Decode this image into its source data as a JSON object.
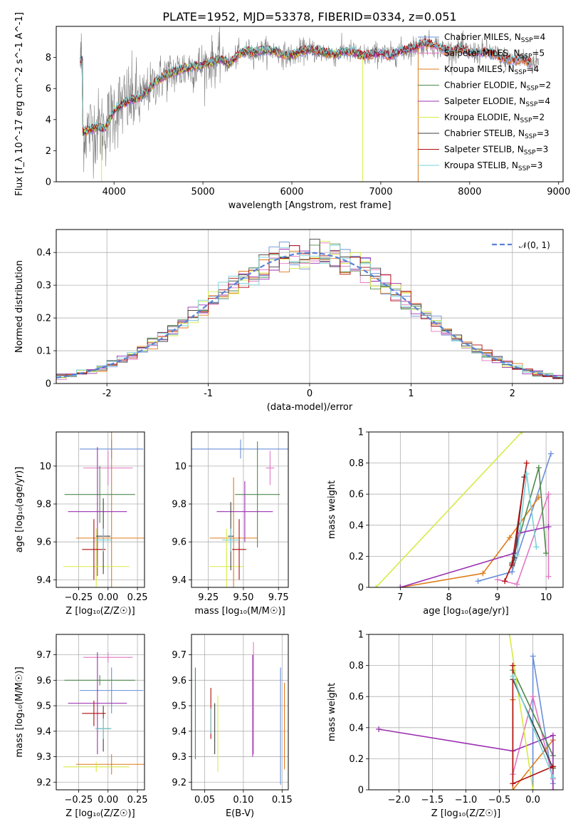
{
  "title": "PLATE=1952, MJD=53378, FIBERID=0334, z=0.051",
  "colors": {
    "Chabrier MILES": "#6a8fd8",
    "Salpeter MILES": "#e377c2",
    "Kroupa MILES": "#e07b1a",
    "Chabrier ELODIE": "#4f8a4f",
    "Salpeter ELODIE": "#9b30b0",
    "Kroupa ELODIE": "#d7ea45",
    "Chabrier STELIB": "#404040",
    "Salpeter STELIB": "#b00d0d",
    "Kroupa STELIB": "#77d3d8",
    "data": "#808080",
    "normal": "#5b82d6"
  },
  "chart_data": [
    {
      "id": "spectrum",
      "type": "line",
      "xlabel": "wavelength [Angstrom, rest frame]",
      "ylabel": "Flux [f_λ 10^-17 erg cm^-2 s^-1 A^-1]",
      "xlim": [
        3350,
        9050
      ],
      "ylim": [
        0,
        10
      ],
      "xticks": [
        4000,
        5000,
        6000,
        7000,
        8000,
        9000
      ],
      "yticks": [
        0,
        2,
        4,
        6,
        8
      ],
      "grid": false,
      "legend": "right",
      "legend_entries": [
        {
          "name": "Chabrier MILES",
          "label": "Chabrier MILES, N",
          "sub": "SSP",
          "suffix": "=4"
        },
        {
          "name": "Salpeter MILES",
          "label": "Salpeter MILES, N",
          "sub": "SSP",
          "suffix": "=5"
        },
        {
          "name": "Kroupa MILES",
          "label": "Kroupa MILES, N",
          "sub": "SSP",
          "suffix": "=4"
        },
        {
          "name": "Chabrier ELODIE",
          "label": "Chabrier ELODIE, N",
          "sub": "SSP",
          "suffix": "=2"
        },
        {
          "name": "Salpeter ELODIE",
          "label": "Salpeter ELODIE, N",
          "sub": "SSP",
          "suffix": "=4"
        },
        {
          "name": "Kroupa ELODIE",
          "label": "Kroupa ELODIE, N",
          "sub": "SSP",
          "suffix": "=2"
        },
        {
          "name": "Chabrier STELIB",
          "label": "Chabrier STELIB, N",
          "sub": "SSP",
          "suffix": "=3"
        },
        {
          "name": "Salpeter STELIB",
          "label": "Salpeter STELIB, N",
          "sub": "SSP",
          "suffix": "=3"
        },
        {
          "name": "Kroupa STELIB",
          "label": "Kroupa STELIB, N",
          "sub": "SSP",
          "suffix": "=3"
        }
      ],
      "continuum": [
        [
          3650,
          3.2
        ],
        [
          3800,
          3.5
        ],
        [
          3900,
          3.4
        ],
        [
          4000,
          4.6
        ],
        [
          4100,
          5.0
        ],
        [
          4200,
          5.3
        ],
        [
          4300,
          5.4
        ],
        [
          4400,
          6.0
        ],
        [
          4500,
          6.6
        ],
        [
          4600,
          6.9
        ],
        [
          4700,
          7.1
        ],
        [
          4800,
          7.3
        ],
        [
          4900,
          7.4
        ],
        [
          5000,
          7.5
        ],
        [
          5100,
          7.7
        ],
        [
          5200,
          7.9
        ],
        [
          5300,
          7.6
        ],
        [
          5400,
          8.2
        ],
        [
          5500,
          8.4
        ],
        [
          5600,
          8.3
        ],
        [
          5700,
          8.5
        ],
        [
          5800,
          8.4
        ],
        [
          5900,
          8.2
        ],
        [
          6000,
          8.1
        ],
        [
          6100,
          8.4
        ],
        [
          6200,
          8.5
        ],
        [
          6300,
          8.4
        ],
        [
          6400,
          8.3
        ],
        [
          6500,
          8.2
        ],
        [
          6600,
          8.4
        ],
        [
          6700,
          8.3
        ],
        [
          6800,
          8.1
        ],
        [
          6900,
          8.2
        ],
        [
          7000,
          8.3
        ],
        [
          7100,
          8.1
        ],
        [
          7200,
          8.4
        ],
        [
          7300,
          8.5
        ],
        [
          7400,
          8.7
        ],
        [
          7500,
          8.9
        ],
        [
          7600,
          8.8
        ],
        [
          7700,
          8.5
        ],
        [
          7800,
          8.4
        ],
        [
          7900,
          8.6
        ],
        [
          8000,
          8.3
        ],
        [
          8100,
          8.3
        ],
        [
          8200,
          8.4
        ],
        [
          8300,
          8.1
        ],
        [
          8400,
          7.9
        ],
        [
          8500,
          7.8
        ],
        [
          8600,
          7.9
        ],
        [
          8700,
          7.6
        ],
        [
          8780,
          7.8
        ]
      ],
      "data_range": [
        3620,
        8780
      ],
      "model_range": [
        3620,
        7420
      ]
    },
    {
      "id": "residuals",
      "type": "histogram",
      "xlabel": "(data-model)/error",
      "ylabel": "Normed distribution",
      "xlim": [
        -2.5,
        2.5
      ],
      "ylim": [
        0,
        0.47
      ],
      "xticks": [
        -2,
        -1,
        0,
        1,
        2
      ],
      "yticks": [
        0.0,
        0.1,
        0.2,
        0.3,
        0.4
      ],
      "grid": true,
      "legend": "top-right",
      "normal_label": "𝒩(0, 1)",
      "bin_width": 0.1
    },
    {
      "id": "age-vs-Z",
      "type": "errorbar",
      "xlabel": "Z [log₁₀(Z/Z☉)]",
      "ylabel": "age  [log₁₀(age/yr)]",
      "xlim": [
        -0.44,
        0.31
      ],
      "ylim": [
        9.36,
        10.18
      ],
      "xticks": [
        -0.25,
        0.0,
        0.25
      ],
      "xticklabels": [
        "−0.25",
        "0.00",
        "0.25"
      ],
      "yticks": [
        9.4,
        9.6,
        9.8,
        10.0
      ],
      "grid": true,
      "points": [
        {
          "series": "Chabrier MILES",
          "x": 0.03,
          "xerr": 0.27,
          "y": 10.09,
          "yerr": 0.05
        },
        {
          "series": "Salpeter MILES",
          "x": 0.0,
          "xerr": 0.21,
          "y": 9.99,
          "yerr": 0.09
        },
        {
          "series": "Kroupa MILES",
          "x": 0.03,
          "xerr": 0.3,
          "y": 9.62,
          "yerr": 0.57
        },
        {
          "series": "Chabrier ELODIE",
          "x": -0.07,
          "xerr": 0.3,
          "y": 9.85,
          "yerr": 0.15
        },
        {
          "series": "Salpeter ELODIE",
          "x": -0.09,
          "xerr": 0.25,
          "y": 9.76,
          "yerr": 0.34
        },
        {
          "series": "Kroupa ELODIE",
          "x": -0.1,
          "xerr": 0.28,
          "y": 9.47,
          "yerr": 0.2
        },
        {
          "series": "Chabrier STELIB",
          "x": -0.04,
          "xerr": 0.06,
          "y": 9.63,
          "yerr": 0.2
        },
        {
          "series": "Salpeter STELIB",
          "x": -0.12,
          "xerr": 0.1,
          "y": 9.56,
          "yerr": 0.16
        },
        {
          "series": "Kroupa STELIB",
          "x": -0.04,
          "xerr": 0.07,
          "y": 9.61,
          "yerr": 0.06
        }
      ]
    },
    {
      "id": "age-vs-mass",
      "type": "errorbar",
      "xlabel": "mass [log₁₀(M/M☉)]",
      "ylabel": "",
      "xlim": [
        9.13,
        9.82
      ],
      "ylim": [
        9.36,
        10.18
      ],
      "xticks": [
        9.25,
        9.5,
        9.75
      ],
      "xticklabels": [
        "9.25",
        "9.50",
        "9.75"
      ],
      "yticks": [
        9.4,
        9.6,
        9.8,
        10.0
      ],
      "grid": true,
      "points": [
        {
          "series": "Chabrier MILES",
          "x": 9.48,
          "xerr": 0.4,
          "y": 10.09,
          "yerr": 0.05
        },
        {
          "series": "Salpeter MILES",
          "x": 9.69,
          "xerr": 0.03,
          "y": 9.99,
          "yerr": 0.09
        },
        {
          "series": "Kroupa MILES",
          "x": 9.43,
          "xerr": 0.17,
          "y": 9.62,
          "yerr": 0.32
        },
        {
          "series": "Chabrier ELODIE",
          "x": 9.6,
          "xerr": 0.16,
          "y": 9.85,
          "yerr": 0.28
        },
        {
          "series": "Salpeter ELODIE",
          "x": 9.51,
          "xerr": 0.2,
          "y": 9.76,
          "yerr": 0.16
        },
        {
          "series": "Kroupa ELODIE",
          "x": 9.38,
          "xerr": 0.12,
          "y": 9.47,
          "yerr": 0.2
        },
        {
          "series": "Chabrier STELIB",
          "x": 9.41,
          "xerr": 0.02,
          "y": 9.63,
          "yerr": 0.18
        },
        {
          "series": "Salpeter STELIB",
          "x": 9.47,
          "xerr": 0.05,
          "y": 9.56,
          "yerr": 0.16
        },
        {
          "series": "Kroupa STELIB",
          "x": 9.41,
          "xerr": 0.06,
          "y": 9.61,
          "yerr": 0.06
        }
      ]
    },
    {
      "id": "weight-vs-age",
      "type": "line",
      "xlabel": "age  [log₁₀(age/yr)]",
      "ylabel": "mass weight",
      "xlim": [
        6.35,
        10.35
      ],
      "ylim": [
        0.0,
        1.0
      ],
      "xticks": [
        7,
        8,
        9,
        10
      ],
      "yticks": [
        0.0,
        0.2,
        0.4,
        0.6,
        0.8,
        1.0
      ],
      "grid": true,
      "series": [
        {
          "name": "Chabrier MILES",
          "x": [
            8.6,
            9.3,
            10.1
          ],
          "y": [
            0.04,
            0.1,
            0.86
          ]
        },
        {
          "name": "Salpeter MILES",
          "x": [
            9.0,
            9.4,
            10.05,
            10.05
          ],
          "y": [
            0.05,
            0.02,
            0.6,
            0.07
          ]
        },
        {
          "name": "Kroupa MILES",
          "x": [
            7.0,
            8.7,
            9.25,
            9.85
          ],
          "y": [
            0.0,
            0.09,
            0.32,
            0.58
          ]
        },
        {
          "name": "Chabrier ELODIE",
          "x": [
            9.3,
            9.85,
            10.0
          ],
          "y": [
            0.16,
            0.77,
            0.22
          ]
        },
        {
          "name": "Salpeter ELODIE",
          "x": [
            7.0,
            9.35,
            9.45,
            10.05
          ],
          "y": [
            0.0,
            0.22,
            0.35,
            0.39
          ]
        },
        {
          "name": "Kroupa ELODIE",
          "x": [
            6.5,
            9.5
          ],
          "y": [
            0.0,
            1.0
          ]
        },
        {
          "name": "Chabrier STELIB",
          "x": [
            9.3,
            9.35,
            9.55
          ],
          "y": [
            0.14,
            0.19,
            0.71
          ]
        },
        {
          "name": "Salpeter STELIB",
          "x": [
            9.15,
            9.3,
            9.6
          ],
          "y": [
            0.04,
            0.15,
            0.8
          ]
        },
        {
          "name": "Kroupa STELIB",
          "x": [
            9.4,
            9.6,
            9.8
          ],
          "y": [
            0.21,
            0.73,
            0.26
          ]
        }
      ]
    },
    {
      "id": "mass-vs-Z",
      "type": "errorbar",
      "xlabel": "Z [log₁₀(Z/Z☉)]",
      "ylabel": "mass [log₁₀(M/M☉)]",
      "xlim": [
        -0.44,
        0.31
      ],
      "ylim": [
        9.17,
        9.78
      ],
      "xticks": [
        -0.25,
        0.0,
        0.25
      ],
      "xticklabels": [
        "−0.25",
        "0.00",
        "0.25"
      ],
      "yticks": [
        9.2,
        9.3,
        9.4,
        9.5,
        9.6,
        9.7
      ],
      "grid": true,
      "points": [
        {
          "series": "Chabrier MILES",
          "x": 0.03,
          "xerr": 0.27,
          "y": 9.56,
          "yerr": 0.09
        },
        {
          "series": "Salpeter MILES",
          "x": 0.0,
          "xerr": 0.21,
          "y": 9.69,
          "yerr": 0.02
        },
        {
          "series": "Kroupa MILES",
          "x": 0.03,
          "xerr": 0.3,
          "y": 9.27,
          "yerr": 0.04
        },
        {
          "series": "Chabrier ELODIE",
          "x": -0.07,
          "xerr": 0.3,
          "y": 9.6,
          "yerr": 0.02
        },
        {
          "series": "Salpeter ELODIE",
          "x": -0.09,
          "xerr": 0.25,
          "y": 9.51,
          "yerr": 0.2
        },
        {
          "series": "Kroupa ELODIE",
          "x": -0.1,
          "xerr": 0.28,
          "y": 9.26,
          "yerr": 0.02
        },
        {
          "series": "Chabrier STELIB",
          "x": -0.04,
          "xerr": 0.06,
          "y": 9.41,
          "yerr": 0.09
        },
        {
          "series": "Salpeter STELIB",
          "x": -0.12,
          "xerr": 0.1,
          "y": 9.47,
          "yerr": 0.05
        },
        {
          "series": "Kroupa STELIB",
          "x": -0.04,
          "xerr": 0.07,
          "y": 9.41,
          "yerr": 0.04
        }
      ]
    },
    {
      "id": "mass-vs-EBV",
      "type": "errorbar",
      "xlabel": "E(B-V)",
      "ylabel": "",
      "xlim": [
        0.033,
        0.158
      ],
      "ylim": [
        9.17,
        9.78
      ],
      "xticks": [
        0.05,
        0.1,
        0.15
      ],
      "xticklabels": [
        "0.05",
        "0.10",
        "0.15"
      ],
      "yticks": [
        9.2,
        9.3,
        9.4,
        9.5,
        9.6,
        9.7
      ],
      "grid": true,
      "points": [
        {
          "series": "Chabrier MILES",
          "x": 0.148,
          "xerr": 0,
          "y": 9.42,
          "yerr": 0.23
        },
        {
          "series": "Salpeter MILES",
          "x": 0.113,
          "xerr": 0,
          "y": 9.53,
          "yerr": 0.22
        },
        {
          "series": "Kroupa MILES",
          "x": 0.153,
          "xerr": 0,
          "y": 9.42,
          "yerr": 0.17
        },
        {
          "series": "Chabrier ELODIE",
          "x": 0.038,
          "xerr": 0,
          "y": 9.47,
          "yerr": 0.18
        },
        {
          "series": "Salpeter ELODIE",
          "x": 0.112,
          "xerr": 0,
          "y": 9.5,
          "yerr": 0.2
        },
        {
          "series": "Kroupa ELODIE",
          "x": 0.067,
          "xerr": 0,
          "y": 9.39,
          "yerr": 0.15
        },
        {
          "series": "Chabrier STELIB",
          "x": 0.063,
          "xerr": 0,
          "y": 9.41,
          "yerr": 0.1
        },
        {
          "series": "Salpeter STELIB",
          "x": 0.058,
          "xerr": 0,
          "y": 9.47,
          "yerr": 0.1
        },
        {
          "series": "Kroupa STELIB",
          "x": 0.058,
          "xerr": 0,
          "y": 9.44,
          "yerr": 0.05
        }
      ]
    },
    {
      "id": "weight-vs-Z",
      "type": "line",
      "xlabel": "Z [log₁₀(Z/Z☉)]",
      "ylabel": "mass weight",
      "xlim": [
        -2.45,
        0.45
      ],
      "ylim": [
        0.0,
        1.0
      ],
      "xticks": [
        -2.0,
        -1.5,
        -1.0,
        -0.5,
        0.0
      ],
      "xticklabels": [
        "−2.0",
        "−1.5",
        "−1.0",
        "−0.5",
        "0.0"
      ],
      "yticks": [
        0.0,
        0.2,
        0.4,
        0.6,
        0.8,
        1.0
      ],
      "grid": true,
      "series": [
        {
          "name": "Chabrier MILES",
          "x": [
            0.0,
            0.0,
            0.3
          ],
          "y": [
            0.0,
            0.86,
            0.04
          ]
        },
        {
          "name": "Salpeter MILES",
          "x": [
            -0.3,
            0.0,
            0.3
          ],
          "y": [
            0.1,
            0.6,
            0.07
          ]
        },
        {
          "name": "Kroupa MILES",
          "x": [
            -0.3,
            -0.3,
            0.3
          ],
          "y": [
            0.58,
            0.0,
            0.32
          ]
        },
        {
          "name": "Chabrier ELODIE",
          "x": [
            -0.3,
            0.3
          ],
          "y": [
            0.77,
            0.22
          ]
        },
        {
          "name": "Salpeter ELODIE",
          "x": [
            -2.3,
            -0.3,
            0.3,
            0.3
          ],
          "y": [
            0.39,
            0.25,
            0.35,
            0.0
          ]
        },
        {
          "name": "Kroupa ELODIE",
          "x": [
            -0.35,
            0.0
          ],
          "y": [
            1.0,
            0.0
          ]
        },
        {
          "name": "Chabrier STELIB",
          "x": [
            -0.3,
            0.3
          ],
          "y": [
            0.71,
            0.14
          ]
        },
        {
          "name": "Salpeter STELIB",
          "x": [
            -0.3,
            -0.3,
            0.3
          ],
          "y": [
            0.8,
            0.04,
            0.15
          ]
        },
        {
          "name": "Kroupa STELIB",
          "x": [
            -0.3,
            0.3
          ],
          "y": [
            0.73,
            0.08
          ]
        }
      ]
    }
  ]
}
